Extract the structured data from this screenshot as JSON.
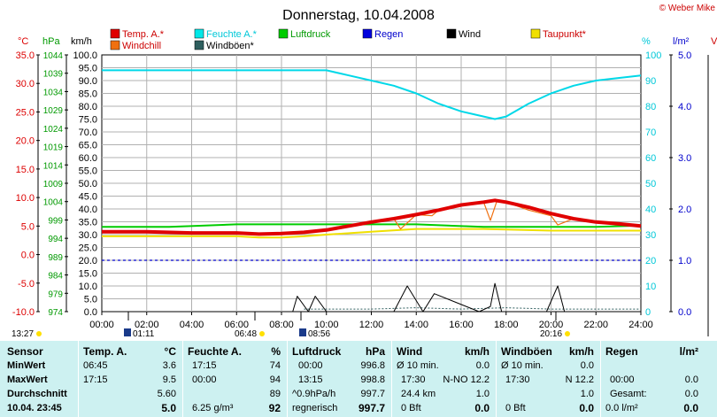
{
  "title": "Donnerstag, 10.04.2008",
  "copyright": "© Weber Mike",
  "legend": [
    {
      "label": "Temp. A.*",
      "color": "#e00000"
    },
    {
      "label": "Feuchte A.*",
      "color": "#00d8e8"
    },
    {
      "label": "Luftdruck",
      "color": "#00cc00"
    },
    {
      "label": "Regen",
      "color": "#0000dd"
    },
    {
      "label": "Wind",
      "color": "#000000"
    },
    {
      "label": "Taupunkt*",
      "color": "#f0e000"
    },
    {
      "label": "Windchill",
      "color": "#f07010"
    },
    {
      "label": "Windböen*",
      "color": "#2e5e5e"
    }
  ],
  "axis_units": {
    "temp": "°C",
    "pressure": "hPa",
    "wind": "km/h",
    "humidity": "%",
    "rain": "l/m²"
  },
  "chart_data": {
    "type": "line",
    "x_ticks": [
      "00:00",
      "02:00",
      "04:00",
      "06:00",
      "08:00",
      "10:00",
      "12:00",
      "14:00",
      "16:00",
      "18:00",
      "20:00",
      "22:00",
      "24:00"
    ],
    "temp_ticks": [
      "35.0",
      "30.0",
      "25.0",
      "20.0",
      "15.0",
      "10.0",
      "5.0",
      "0.0",
      "-5.0",
      "-10.0"
    ],
    "pressure_ticks": [
      "1044",
      "1039",
      "1034",
      "1029",
      "1024",
      "1019",
      "1014",
      "1009",
      "1004",
      "999",
      "994",
      "989",
      "984",
      "979",
      "974"
    ],
    "wind_ticks": [
      "100.0",
      "95.0",
      "90.0",
      "85.0",
      "80.0",
      "75.0",
      "70.0",
      "65.0",
      "60.0",
      "55.0",
      "50.0",
      "45.0",
      "40.0",
      "35.0",
      "30.0",
      "25.0",
      "20.0",
      "15.0",
      "10.0",
      "5.0",
      "0.0"
    ],
    "humidity_ticks": [
      "100",
      "90",
      "80",
      "70",
      "60",
      "50",
      "40",
      "30",
      "20",
      "10",
      "0"
    ],
    "rain_ticks": [
      "5.0",
      "4.0",
      "3.0",
      "2.0",
      "1.0",
      "0.0"
    ],
    "x_range": [
      0,
      24
    ],
    "wind_range": [
      0,
      100
    ],
    "temp_range": [
      -10,
      35
    ],
    "humidity_range": [
      0,
      100
    ],
    "series": [
      {
        "name": "Temp. A.*",
        "axis": "temp",
        "color": "#e00000",
        "x": [
          0,
          2,
          4,
          6,
          7,
          8,
          9,
          10,
          11,
          12,
          13,
          14,
          15,
          16,
          17,
          17.5,
          18,
          19,
          20,
          21,
          22,
          23,
          24
        ],
        "y": [
          4.0,
          4.0,
          3.8,
          3.8,
          3.6,
          3.7,
          3.9,
          4.3,
          5.0,
          5.7,
          6.3,
          7.0,
          7.8,
          8.7,
          9.2,
          9.5,
          9.2,
          8.3,
          7.2,
          6.3,
          5.7,
          5.4,
          5.0
        ]
      },
      {
        "name": "Feuchte A.*",
        "axis": "humidity",
        "color": "#00d8e8",
        "x": [
          0,
          2,
          4,
          6,
          8,
          10,
          11,
          12,
          13,
          14,
          15,
          16,
          17,
          17.5,
          18,
          19,
          20,
          21,
          22,
          23,
          24
        ],
        "y": [
          94,
          94,
          94,
          94,
          94,
          94,
          92,
          90,
          88,
          85,
          81,
          78,
          76,
          75,
          76,
          81,
          85,
          88,
          90,
          91,
          92
        ]
      },
      {
        "name": "Luftdruck",
        "axis": "wind",
        "color": "#00cc00",
        "x": [
          0,
          3,
          6,
          9,
          11,
          14,
          17,
          20,
          22,
          24
        ],
        "y": [
          33,
          33,
          34,
          34,
          34,
          34,
          33,
          33,
          33,
          33.5
        ]
      },
      {
        "name": "Taupunkt*",
        "axis": "temp",
        "color": "#f0e000",
        "x": [
          0,
          4,
          6,
          7,
          8,
          9,
          10,
          12,
          14,
          17,
          20,
          22,
          24
        ],
        "y": [
          3.2,
          3.2,
          3.2,
          3.0,
          3.0,
          3.2,
          3.5,
          4.0,
          4.5,
          4.5,
          4.2,
          4.2,
          4.2
        ]
      },
      {
        "name": "Windchill",
        "axis": "temp",
        "color": "#f07010",
        "x": [
          12,
          13,
          13.3,
          14,
          14.7,
          15,
          16,
          17,
          17.3,
          17.6,
          18,
          19,
          20,
          20.3,
          21,
          22,
          24
        ],
        "y": [
          5.7,
          6.3,
          4.5,
          7.0,
          6.8,
          7.8,
          8.7,
          9.2,
          6.0,
          9.5,
          9.2,
          7.8,
          6.8,
          5.2,
          6.3,
          5.7,
          5.0
        ]
      },
      {
        "name": "Wind",
        "axis": "wind",
        "color": "#000000",
        "x": [
          8.5,
          8.7,
          9.2,
          9.5,
          10,
          13,
          13.6,
          14.3,
          14.8,
          16.8,
          17.3,
          17.5,
          17.8,
          19.8,
          20.3,
          20.6
        ],
        "y": [
          0,
          6,
          0,
          6,
          0,
          0,
          10,
          0,
          7,
          0,
          2,
          11,
          0,
          0,
          10,
          0
        ]
      },
      {
        "name": "Windböen*",
        "axis": "wind",
        "color": "#2e5e5e",
        "x": [
          9,
          10,
          12,
          14,
          16,
          18,
          20,
          22,
          24
        ],
        "y": [
          1,
          1,
          1,
          1.5,
          1,
          1.5,
          1,
          1,
          1
        ]
      }
    ],
    "rain_line_level": 1.0,
    "time_markers": [
      {
        "label": "13:27"
      },
      {
        "label": "01:11"
      },
      {
        "label": "06:48"
      },
      {
        "label": "08:56"
      },
      {
        "label": "20:16"
      }
    ]
  },
  "table": {
    "sensor": {
      "header": "Sensor",
      "rows": [
        "MinWert",
        "MaxWert",
        "Durchschnitt",
        "10.04. 23:45"
      ]
    },
    "temp": {
      "header": "Temp. A.",
      "unit": "°C",
      "rows": [
        [
          "06:45",
          "3.6"
        ],
        [
          "17:15",
          "9.5"
        ],
        [
          "",
          "5.60"
        ],
        [
          "",
          "5.0"
        ]
      ]
    },
    "feuchte": {
      "header": "Feuchte A.",
      "unit": "%",
      "rows": [
        [
          "17:15",
          "74"
        ],
        [
          "00:00",
          "94"
        ],
        [
          "",
          "89"
        ],
        [
          "6.25 g/m³",
          "92"
        ]
      ]
    },
    "luftdruck": {
      "header": "Luftdruck",
      "unit": "hPa",
      "rows": [
        [
          "00:00",
          "996.8"
        ],
        [
          "13:15",
          "998.8"
        ],
        [
          "^0.9hPa/h",
          "997.7"
        ],
        [
          "regnerisch",
          "997.7"
        ]
      ]
    },
    "wind": {
      "header": "Wind",
      "unit": "km/h",
      "rows": [
        [
          "Ø 10 min.",
          "",
          "0.0"
        ],
        [
          "17:30",
          "N-NO 12.2",
          ""
        ],
        [
          "24.4 km",
          "",
          "1.0"
        ],
        [
          "0 Bft",
          "",
          "0.0"
        ]
      ]
    },
    "windboeen": {
      "header": "Windböen",
      "unit": "km/h",
      "rows": [
        [
          "Ø 10 min.",
          "",
          "0.0"
        ],
        [
          "17:30",
          "N 12.2",
          ""
        ],
        [
          "",
          "",
          "1.0"
        ],
        [
          "0 Bft",
          "",
          "0.0"
        ]
      ]
    },
    "regen": {
      "header": "Regen",
      "unit": "l/m²",
      "rows": [
        [
          "",
          ""
        ],
        [
          "00:00",
          "0.0"
        ],
        [
          "Gesamt:",
          "0.0"
        ],
        [
          "0.0 l/m²",
          "0.0"
        ]
      ]
    }
  }
}
